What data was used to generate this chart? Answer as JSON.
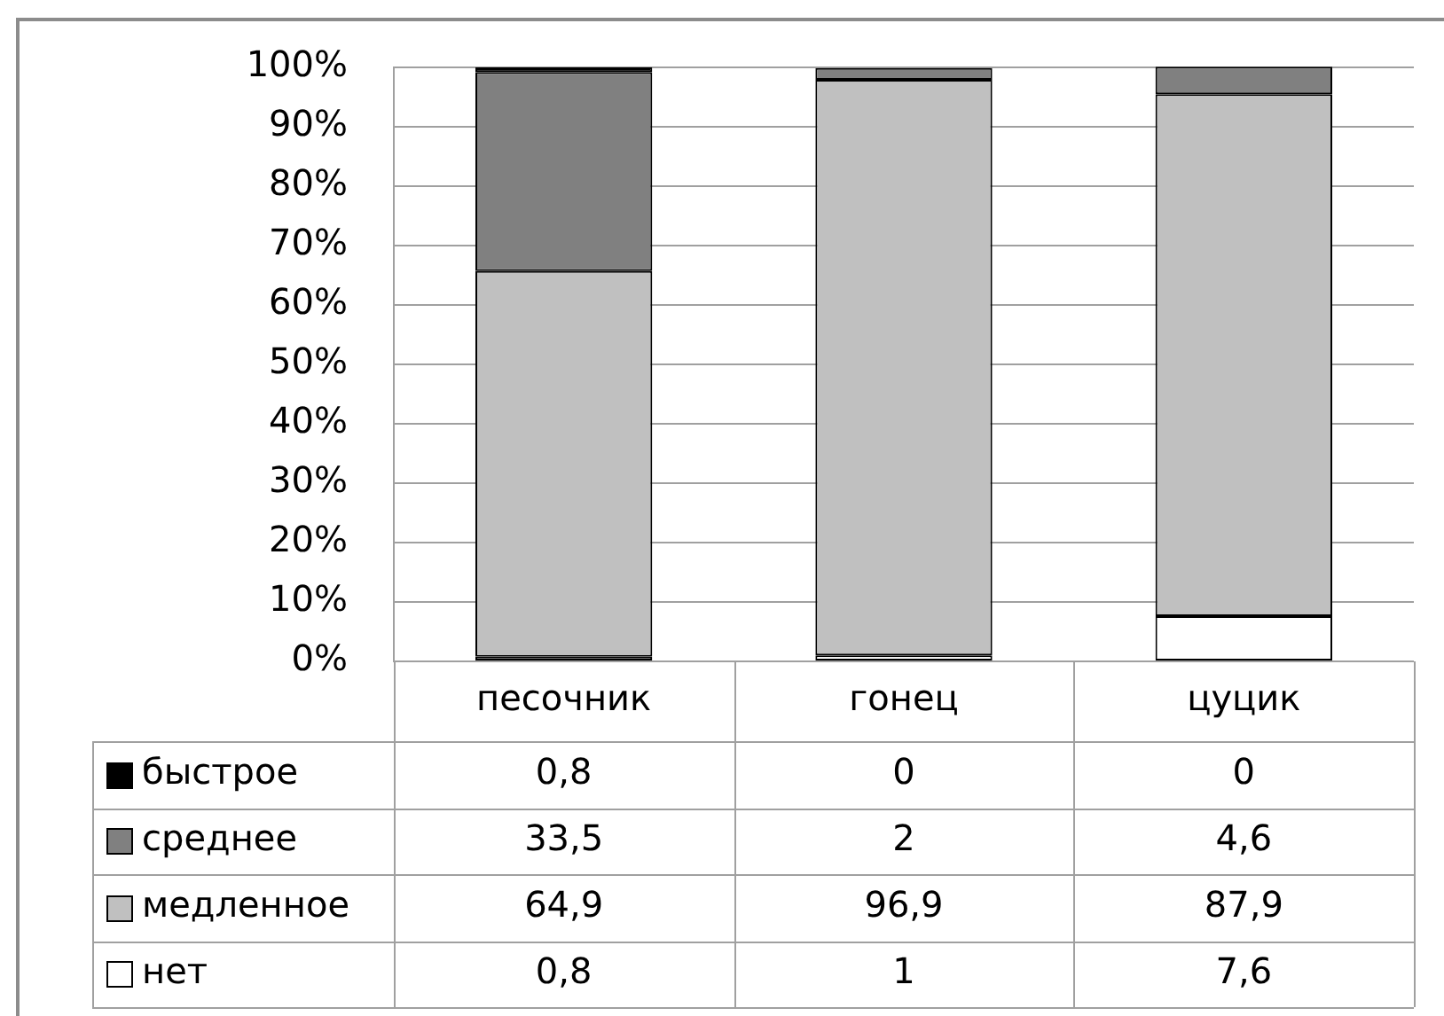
{
  "chart_data": {
    "type": "bar",
    "stacked": true,
    "categories": [
      "песочник",
      "гонец",
      "цуцик"
    ],
    "series": [
      {
        "name": "нет",
        "color": "#ffffff",
        "values": [
          0.8,
          1,
          7.6
        ],
        "value_labels": [
          "0,8",
          "1",
          "7,6"
        ]
      },
      {
        "name": "медленное",
        "color": "#c0c0c0",
        "values": [
          64.9,
          96.9,
          87.9
        ],
        "value_labels": [
          "64,9",
          "96,9",
          "87,9"
        ]
      },
      {
        "name": "среднее",
        "color": "#808080",
        "values": [
          33.5,
          2,
          4.6
        ],
        "value_labels": [
          "33,5",
          "2",
          "4,6"
        ]
      },
      {
        "name": "быстрое",
        "color": "#000000",
        "values": [
          0.8,
          0,
          0
        ],
        "value_labels": [
          "0,8",
          "0",
          "0"
        ]
      }
    ],
    "ylim": [
      0,
      100
    ],
    "yticks": [
      {
        "value": 0,
        "label": "0%"
      },
      {
        "value": 10,
        "label": "10%"
      },
      {
        "value": 20,
        "label": "20%"
      },
      {
        "value": 30,
        "label": "30%"
      },
      {
        "value": 40,
        "label": "40%"
      },
      {
        "value": 50,
        "label": "50%"
      },
      {
        "value": 60,
        "label": "60%"
      },
      {
        "value": 70,
        "label": "70%"
      },
      {
        "value": 80,
        "label": "80%"
      },
      {
        "value": 90,
        "label": "90%"
      },
      {
        "value": 100,
        "label": "100%"
      }
    ],
    "grid": "y",
    "legend": "bottom left"
  }
}
